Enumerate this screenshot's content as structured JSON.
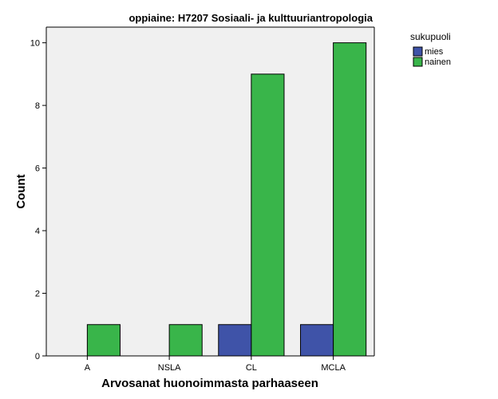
{
  "chart_data": {
    "type": "bar",
    "title": "oppiaine: H7207 Sosiaali- ja kulttuuriantropologia",
    "xlabel": "Arvosanat huonoimmasta parhaaseen",
    "ylabel": "Count",
    "categories": [
      "A",
      "NSLA",
      "CL",
      "MCLA"
    ],
    "series": [
      {
        "name": "mies",
        "values": [
          0,
          0,
          1,
          1
        ],
        "color": "#3f53a8"
      },
      {
        "name": "nainen",
        "values": [
          1,
          1,
          9,
          10
        ],
        "color": "#39b54a"
      }
    ],
    "ylim": [
      0,
      10.5
    ],
    "yticks": [
      0,
      2,
      4,
      6,
      8,
      10
    ],
    "legend": {
      "title": "sukupuoli",
      "position": "top-right-outside"
    },
    "grid": false,
    "plot_background": "#f0f0f0"
  }
}
